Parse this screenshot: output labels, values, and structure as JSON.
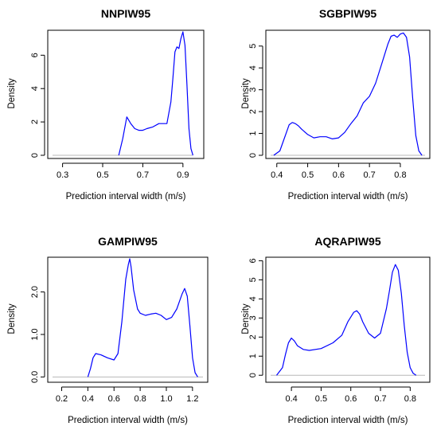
{
  "chart_data": [
    {
      "type": "line",
      "title": "NNPIW95",
      "xlabel": "Prediction interval width (m/s)",
      "ylabel": "Density",
      "xlim": [
        0.25,
        0.98
      ],
      "ylim": [
        0,
        7.4
      ],
      "x_ticks": [
        0.3,
        0.5,
        0.7,
        0.9
      ],
      "x_tick_labels": [
        "0.3",
        "0.5",
        "0.7",
        "0.9"
      ],
      "y_ticks": [
        0,
        2,
        4,
        6
      ],
      "y_tick_labels": [
        "0",
        "2",
        "4",
        "6"
      ],
      "baseline": [
        0.25,
        0.95
      ],
      "series": [
        {
          "color": "#0000ff",
          "x": [
            0.58,
            0.6,
            0.62,
            0.64,
            0.66,
            0.68,
            0.7,
            0.72,
            0.75,
            0.78,
            0.8,
            0.82,
            0.84,
            0.85,
            0.86,
            0.87,
            0.88,
            0.89,
            0.9,
            0.91,
            0.92,
            0.93,
            0.94,
            0.95
          ],
          "y": [
            0.0,
            1.0,
            2.3,
            1.9,
            1.6,
            1.5,
            1.5,
            1.6,
            1.7,
            1.9,
            1.9,
            1.9,
            3.2,
            4.6,
            6.2,
            6.5,
            6.4,
            7.0,
            7.4,
            6.6,
            4.2,
            1.6,
            0.4,
            0.0
          ]
        }
      ]
    },
    {
      "type": "line",
      "title": "SGBPIW95",
      "xlabel": "Prediction interval width (m/s)",
      "ylabel": "Density",
      "xlim": [
        0.38,
        0.88
      ],
      "ylim": [
        0,
        5.65
      ],
      "x_ticks": [
        0.4,
        0.5,
        0.6,
        0.7,
        0.8
      ],
      "x_tick_labels": [
        "0.4",
        "0.5",
        "0.6",
        "0.7",
        "0.8"
      ],
      "y_ticks": [
        0,
        1,
        2,
        3,
        4,
        5
      ],
      "y_tick_labels": [
        "0",
        "1",
        "2",
        "3",
        "4",
        "5"
      ],
      "baseline": [
        0.38,
        0.88
      ],
      "series": [
        {
          "color": "#0000ff",
          "x": [
            0.39,
            0.41,
            0.42,
            0.43,
            0.44,
            0.45,
            0.46,
            0.47,
            0.48,
            0.5,
            0.52,
            0.54,
            0.56,
            0.58,
            0.6,
            0.62,
            0.64,
            0.66,
            0.68,
            0.7,
            0.72,
            0.74,
            0.76,
            0.77,
            0.78,
            0.79,
            0.8,
            0.81,
            0.82,
            0.83,
            0.84,
            0.85,
            0.86,
            0.87
          ],
          "y": [
            0.0,
            0.2,
            0.6,
            1.0,
            1.4,
            1.5,
            1.45,
            1.35,
            1.2,
            0.95,
            0.8,
            0.85,
            0.85,
            0.75,
            0.8,
            1.05,
            1.45,
            1.8,
            2.4,
            2.7,
            3.3,
            4.2,
            5.1,
            5.45,
            5.5,
            5.4,
            5.55,
            5.6,
            5.4,
            4.5,
            2.6,
            0.9,
            0.2,
            0.0
          ]
        }
      ]
    },
    {
      "type": "line",
      "title": "GAMPIW95",
      "xlabel": "Prediction interval width (m/s)",
      "ylabel": "Density",
      "xlim": [
        0.13,
        1.28
      ],
      "ylim": [
        -0.05,
        2.78
      ],
      "x_ticks": [
        0.2,
        0.4,
        0.6,
        0.8,
        1.0,
        1.2
      ],
      "x_tick_labels": [
        "0.2",
        "0.4",
        "0.6",
        "0.8",
        "1.0",
        "1.2"
      ],
      "y_ticks": [
        0.0,
        1.0,
        2.0
      ],
      "y_tick_labels": [
        "0.0",
        "1.0",
        "2.0"
      ],
      "baseline": [
        0.13,
        1.28
      ],
      "series": [
        {
          "color": "#0000ff",
          "x": [
            0.4,
            0.42,
            0.44,
            0.46,
            0.5,
            0.55,
            0.6,
            0.63,
            0.66,
            0.69,
            0.71,
            0.72,
            0.73,
            0.75,
            0.78,
            0.8,
            0.84,
            0.88,
            0.92,
            0.96,
            1.0,
            1.04,
            1.08,
            1.12,
            1.14,
            1.16,
            1.18,
            1.2,
            1.22,
            1.24
          ],
          "y": [
            0.0,
            0.2,
            0.45,
            0.55,
            0.52,
            0.45,
            0.4,
            0.55,
            1.3,
            2.3,
            2.65,
            2.78,
            2.6,
            2.05,
            1.6,
            1.5,
            1.45,
            1.48,
            1.5,
            1.45,
            1.35,
            1.4,
            1.6,
            1.95,
            2.08,
            1.9,
            1.2,
            0.45,
            0.1,
            0.0
          ]
        }
      ]
    },
    {
      "type": "line",
      "title": "AQRAPIW95",
      "xlabel": "Prediction interval width (m/s)",
      "ylabel": "Density",
      "xlim": [
        0.33,
        0.85
      ],
      "ylim": [
        -0.2,
        6.1
      ],
      "x_ticks": [
        0.4,
        0.5,
        0.6,
        0.7,
        0.8
      ],
      "x_tick_labels": [
        "0.4",
        "0.5",
        "0.6",
        "0.7",
        "0.8"
      ],
      "y_ticks": [
        0,
        1,
        2,
        3,
        4,
        5,
        6
      ],
      "y_tick_labels": [
        "0",
        "1",
        "2",
        "3",
        "4",
        "5",
        "6"
      ],
      "baseline": [
        0.33,
        0.85
      ],
      "series": [
        {
          "color": "#0000ff",
          "x": [
            0.35,
            0.37,
            0.38,
            0.39,
            0.4,
            0.41,
            0.42,
            0.44,
            0.46,
            0.5,
            0.54,
            0.57,
            0.59,
            0.61,
            0.62,
            0.63,
            0.64,
            0.66,
            0.68,
            0.7,
            0.72,
            0.73,
            0.74,
            0.75,
            0.76,
            0.77,
            0.78,
            0.79,
            0.8,
            0.81,
            0.82
          ],
          "y": [
            0.0,
            0.4,
            1.1,
            1.7,
            1.95,
            1.8,
            1.55,
            1.35,
            1.3,
            1.4,
            1.7,
            2.1,
            2.8,
            3.3,
            3.38,
            3.2,
            2.8,
            2.2,
            1.95,
            2.2,
            3.5,
            4.4,
            5.4,
            5.8,
            5.5,
            4.3,
            2.6,
            1.2,
            0.4,
            0.1,
            0.0
          ]
        }
      ]
    }
  ]
}
